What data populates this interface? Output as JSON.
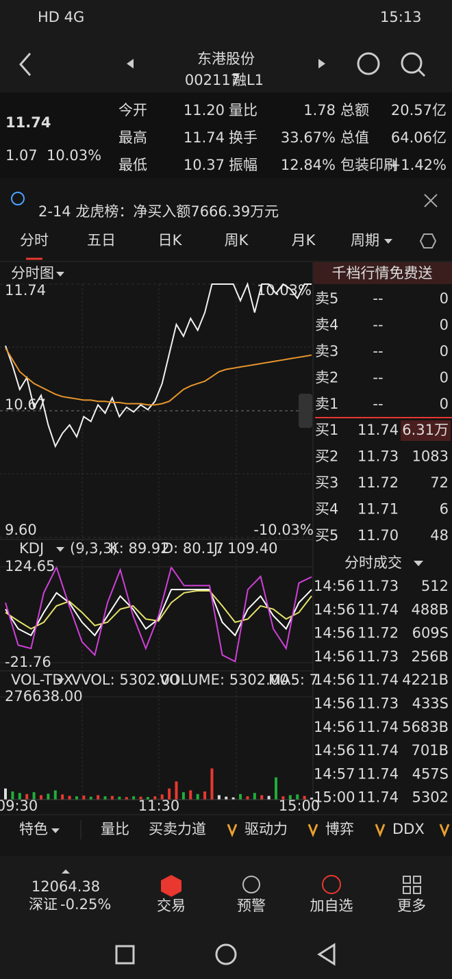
{
  "status_bar": {
    "left": "HD 4G",
    "time": "15:13"
  },
  "header": {
    "title": "东港股份",
    "code": "002117",
    "badge": "融L1"
  },
  "quote": {
    "price": "11.74",
    "change": "1.07",
    "change_pct": "10.03%",
    "fields": [
      [
        "今开",
        "11.20",
        "量比",
        "1.78",
        "总额",
        "20.57亿"
      ],
      [
        "最高",
        "11.74",
        "换手",
        "33.67%",
        "总值",
        "64.06亿"
      ],
      [
        "最低",
        "10.37",
        "振幅",
        "12.84%",
        "包装印刷",
        "+1.42%"
      ]
    ]
  },
  "notice": {
    "text": "2-14 龙虎榜：净买入额7666.39万元"
  },
  "tabs": [
    "分时",
    "五日",
    "日K",
    "周K",
    "月K",
    "周期"
  ],
  "intraday": {
    "type": "line",
    "title": "分时图",
    "ylim": [
      9.6,
      11.74
    ],
    "yticks": [
      11.74,
      10.67,
      {
        "value": 9.6,
        "label": "9.60"
      }
    ],
    "pct_labels": [
      "10.03%",
      "-10.03%"
    ],
    "x_labels": [
      "09:30",
      "11:30",
      "15:00"
    ],
    "series": [
      {
        "name": "price",
        "color": "#f2f2f2",
        "values": [
          11.22,
          11.05,
          10.85,
          10.95,
          10.7,
          10.8,
          10.55,
          10.37,
          10.48,
          10.55,
          10.45,
          10.62,
          10.58,
          10.72,
          10.65,
          10.78,
          10.62,
          10.7,
          10.66,
          10.72,
          10.68,
          10.75,
          10.9,
          11.15,
          11.4,
          11.3,
          11.45,
          11.35,
          11.5,
          11.74,
          11.74,
          11.74,
          11.74,
          11.6,
          11.74,
          11.5,
          11.74,
          11.74,
          11.66,
          11.74,
          11.7,
          11.62,
          11.74,
          11.74
        ]
      },
      {
        "name": "avg",
        "color": "#e8962c",
        "values": [
          11.2,
          11.1,
          11.0,
          10.95,
          10.9,
          10.87,
          10.84,
          10.81,
          10.79,
          10.78,
          10.77,
          10.76,
          10.76,
          10.75,
          10.75,
          10.74,
          10.74,
          10.73,
          10.73,
          10.73,
          10.72,
          10.72,
          10.73,
          10.75,
          10.8,
          10.85,
          10.88,
          10.9,
          10.92,
          10.96,
          11.0,
          11.02,
          11.03,
          11.04,
          11.05,
          11.06,
          11.07,
          11.08,
          11.09,
          11.1,
          11.11,
          11.12,
          11.13,
          11.14
        ]
      }
    ]
  },
  "kdj": {
    "type": "line",
    "title": "KDJ",
    "params": "(9,3,3)",
    "readouts": [
      "K: 89.92",
      "D: 80.17",
      "J: 109.40"
    ],
    "ylim": [
      -21.76,
      124.65
    ],
    "yticks": [
      124.65,
      -21.76
    ],
    "series": [
      {
        "name": "K",
        "color": "#ffffff",
        "values": [
          60,
          30,
          20,
          55,
          85,
          70,
          40,
          20,
          50,
          80,
          60,
          30,
          45,
          90,
          90,
          90,
          90,
          40,
          20,
          60,
          80,
          50,
          30,
          70,
          89.92
        ]
      },
      {
        "name": "D",
        "color": "#e6e36a",
        "values": [
          55,
          42,
          30,
          40,
          65,
          72,
          55,
          35,
          40,
          60,
          65,
          45,
          42,
          70,
          85,
          88,
          88,
          65,
          40,
          45,
          65,
          60,
          45,
          55,
          80.17
        ]
      },
      {
        "name": "J",
        "color": "#d040d8",
        "values": [
          70,
          5,
          0,
          85,
          124,
          65,
          10,
          -10,
          70,
          120,
          50,
          0,
          50,
          124,
          96,
          96,
          96,
          -10,
          -20,
          90,
          110,
          30,
          0,
          100,
          109.4
        ]
      }
    ]
  },
  "volume": {
    "type": "bar",
    "title": "VOL-TDX",
    "readouts": [
      "VVOL: 5302.00",
      "VOLUME: 5302.00",
      "MA5: 7"
    ],
    "ylim": [
      0,
      276638
    ],
    "yticks": [
      {
        "value": 276638,
        "label": "276638.00"
      }
    ],
    "values": [
      30000,
      22000,
      18000,
      15000,
      20000,
      12000,
      16000,
      25000,
      14000,
      10000,
      9000,
      11000,
      8000,
      12000,
      9000,
      10000,
      8000,
      7000,
      9000,
      8000,
      7000,
      9000,
      14000,
      30000,
      49000,
      20000,
      25000,
      15000,
      22000,
      84000,
      12000,
      8000,
      6000,
      15000,
      9000,
      18000,
      12000,
      10000,
      60000,
      9000,
      12000,
      14000,
      10000,
      5302
    ]
  },
  "order_book": {
    "banner": "千档行情免费送",
    "asks": [
      [
        "卖5",
        "--",
        "0"
      ],
      [
        "卖4",
        "--",
        "0"
      ],
      [
        "卖3",
        "--",
        "0"
      ],
      [
        "卖2",
        "--",
        "0"
      ],
      [
        "卖1",
        "--",
        "0"
      ]
    ],
    "bids": [
      [
        "买1",
        "11.74",
        "6.31万"
      ],
      [
        "买2",
        "11.73",
        "1083"
      ],
      [
        "买3",
        "11.72",
        "72"
      ],
      [
        "买4",
        "11.71",
        "6"
      ],
      [
        "买5",
        "11.70",
        "48"
      ]
    ]
  },
  "trades": {
    "title": "分时成交",
    "rows": [
      [
        "14:56",
        "11.73",
        "512"
      ],
      [
        "14:56",
        "11.74",
        "488B"
      ],
      [
        "14:56",
        "11.72",
        "609S"
      ],
      [
        "14:56",
        "11.73",
        "256B"
      ],
      [
        "14:56",
        "11.74",
        "4221B"
      ],
      [
        "14:56",
        "11.73",
        "433S"
      ],
      [
        "14:56",
        "11.74",
        "5683B"
      ],
      [
        "14:56",
        "11.74",
        "701B"
      ],
      [
        "14:57",
        "11.74",
        "457S"
      ],
      [
        "15:00",
        "11.74",
        "5302"
      ]
    ],
    "colors": [
      "#d040d8",
      "#e8382f",
      "#d040d8",
      "#e8382f",
      "#e8382f",
      "#1fae3b",
      "#d040d8",
      "#d040d8",
      "#1fae3b",
      "#d040d8"
    ]
  },
  "indicator_tabs": [
    "特色",
    "量比",
    "买卖力道",
    "驱动力",
    "博弈",
    "DDX"
  ],
  "bottom_nav": {
    "index_value": "12064.38",
    "index_name": "深证",
    "index_change": "-0.25%",
    "items": [
      "交易",
      "预警",
      "加自选",
      "更多"
    ]
  }
}
